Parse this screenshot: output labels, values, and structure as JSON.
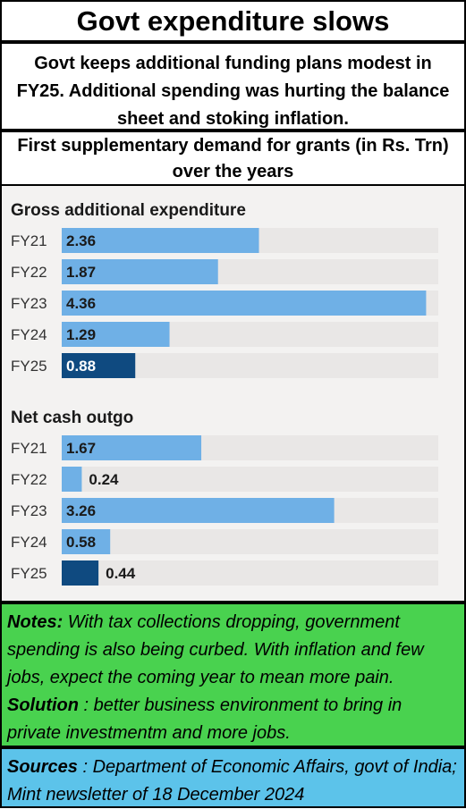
{
  "title": "Govt expenditure slows",
  "subtitle": "Govt keeps additional funding plans modest in FY25.  Additional spending was hurting the balance sheet and stoking inflation.",
  "chart_title": "First supplementary demand for grants (in Rs. Trn) over the years",
  "notes": {
    "label": "Notes:",
    "text": "  With tax collections dropping, government spending is also being curbed.  With inflation and few jobs, expect the coming year to mean more pain.",
    "solution_label": "Solution",
    "solution_text": " : better business environment to bring in private investmentm and more jobs."
  },
  "sources": {
    "label": "Sources",
    "text": " : Department of Economic Affairs, govt of India; Mint newsletter of 18 December 2024"
  },
  "colors": {
    "bar_light": "#6fb0e6",
    "bar_dark": "#0f4a80",
    "track": "#e9e7e6",
    "chart_bg": "#f3f2f1",
    "notes_bg": "#49d24f",
    "sources_bg": "#5cc3ea"
  },
  "chart_data": [
    {
      "type": "bar",
      "orientation": "horizontal",
      "title": "Gross additional expenditure",
      "categories": [
        "FY21",
        "FY22",
        "FY23",
        "FY24",
        "FY25"
      ],
      "values": [
        2.36,
        1.87,
        4.36,
        1.29,
        0.88
      ],
      "value_labels": [
        "2.36",
        "1.87",
        "4.36",
        "1.29",
        "0.88"
      ],
      "highlight": "FY25",
      "xlim": [
        0,
        4.5
      ]
    },
    {
      "type": "bar",
      "orientation": "horizontal",
      "title": "Net cash outgo",
      "categories": [
        "FY21",
        "FY22",
        "FY23",
        "FY24",
        "FY25"
      ],
      "values": [
        1.67,
        0.24,
        3.26,
        0.58,
        0.44
      ],
      "value_labels": [
        "1.67",
        "0.24",
        "3.26",
        "0.58",
        "0.44"
      ],
      "highlight": "FY25",
      "xlim": [
        0,
        4.5
      ]
    }
  ]
}
